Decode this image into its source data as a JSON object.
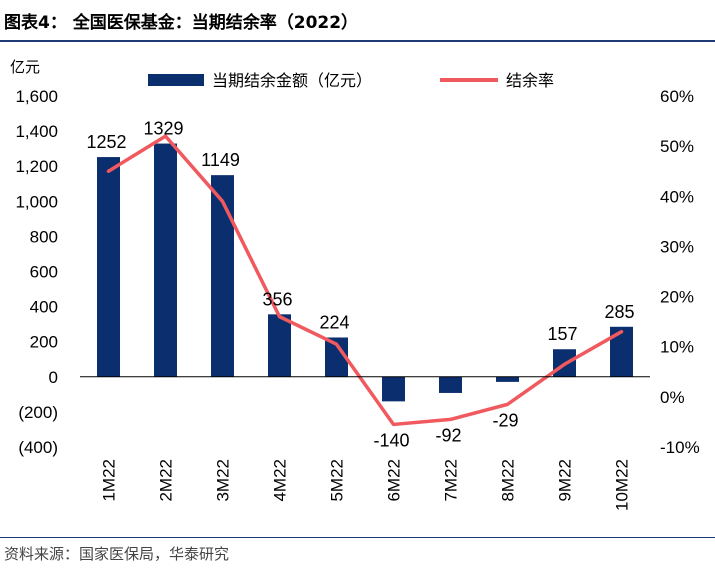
{
  "title": "图表4： 全国医保基金：当期结余率（2022）",
  "source": "资料来源：国家医保局，华泰研究",
  "chart_data": {
    "type": "bar",
    "categories": [
      "1M22",
      "2M22",
      "3M22",
      "4M22",
      "5M22",
      "6M22",
      "7M22",
      "8M22",
      "9M22",
      "10M22"
    ],
    "series": [
      {
        "name": "当期结余金额（亿元）",
        "type": "bar",
        "axis": "left",
        "color": "#0b2e6e",
        "values": [
          1252,
          1329,
          1149,
          356,
          224,
          -140,
          -92,
          -29,
          157,
          285
        ],
        "labels": [
          "1252",
          "1329",
          "1149",
          "356",
          "224",
          "-140",
          "-92",
          "-29",
          "157",
          "285"
        ]
      },
      {
        "name": "结余率",
        "type": "line",
        "axis": "right",
        "color": "#f0595e",
        "values": [
          45,
          52,
          39,
          16,
          10.5,
          -5.5,
          -4.5,
          -1.5,
          6.5,
          13
        ]
      }
    ],
    "y_left": {
      "unit": "亿元",
      "min": -400,
      "max": 1600,
      "step": 200,
      "tick_labels": [
        "1,600",
        "1,400",
        "1,200",
        "1,000",
        "800",
        "600",
        "400",
        "200",
        "0",
        "(200)",
        "(400)"
      ]
    },
    "y_right": {
      "min": -10,
      "max": 60,
      "step": 10,
      "tick_labels": [
        "60%",
        "50%",
        "40%",
        "30%",
        "20%",
        "10%",
        "0%",
        "-10%"
      ]
    }
  }
}
